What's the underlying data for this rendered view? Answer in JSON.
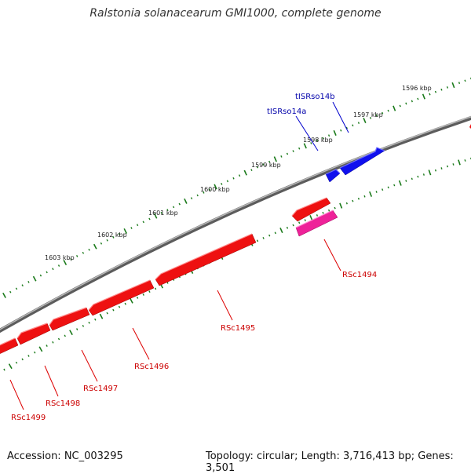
{
  "title": "Ralstonia solanacearum GMI1000, complete genome",
  "footer": {
    "accession": "Accession: NC_003295",
    "summary": "Topology: circular; Length: 3,716,413 bp; Genes: 3,501"
  },
  "colors": {
    "backbone": "#8a8a8a",
    "ticks": "#1a7a1a",
    "cds": "#ee1111",
    "cds_label": "#cc0000",
    "rna": "#1010ee",
    "rna_label": "#0000aa",
    "pseudo": "#ee2299"
  },
  "scale_labels": [
    "1596 kbp",
    "1597 kbp",
    "1598 kbp",
    "1599 kbp",
    "1600 kbp",
    "1601 kbp",
    "1602 kbp",
    "1603 kbp"
  ],
  "genes": [
    {
      "name": "tISRso14b",
      "type": "rna",
      "strand": "+"
    },
    {
      "name": "tISRso14a",
      "type": "rna",
      "strand": "+"
    },
    {
      "name": "RSc1494",
      "type": "cds",
      "strand": "-"
    },
    {
      "name": "RSc1495",
      "type": "cds",
      "strand": "-"
    },
    {
      "name": "RSc1496",
      "type": "cds",
      "strand": "-"
    },
    {
      "name": "RSc1497",
      "type": "cds",
      "strand": "-"
    },
    {
      "name": "RSc1498",
      "type": "cds",
      "strand": "-"
    },
    {
      "name": "RSc1499",
      "type": "cds",
      "strand": "-"
    }
  ]
}
